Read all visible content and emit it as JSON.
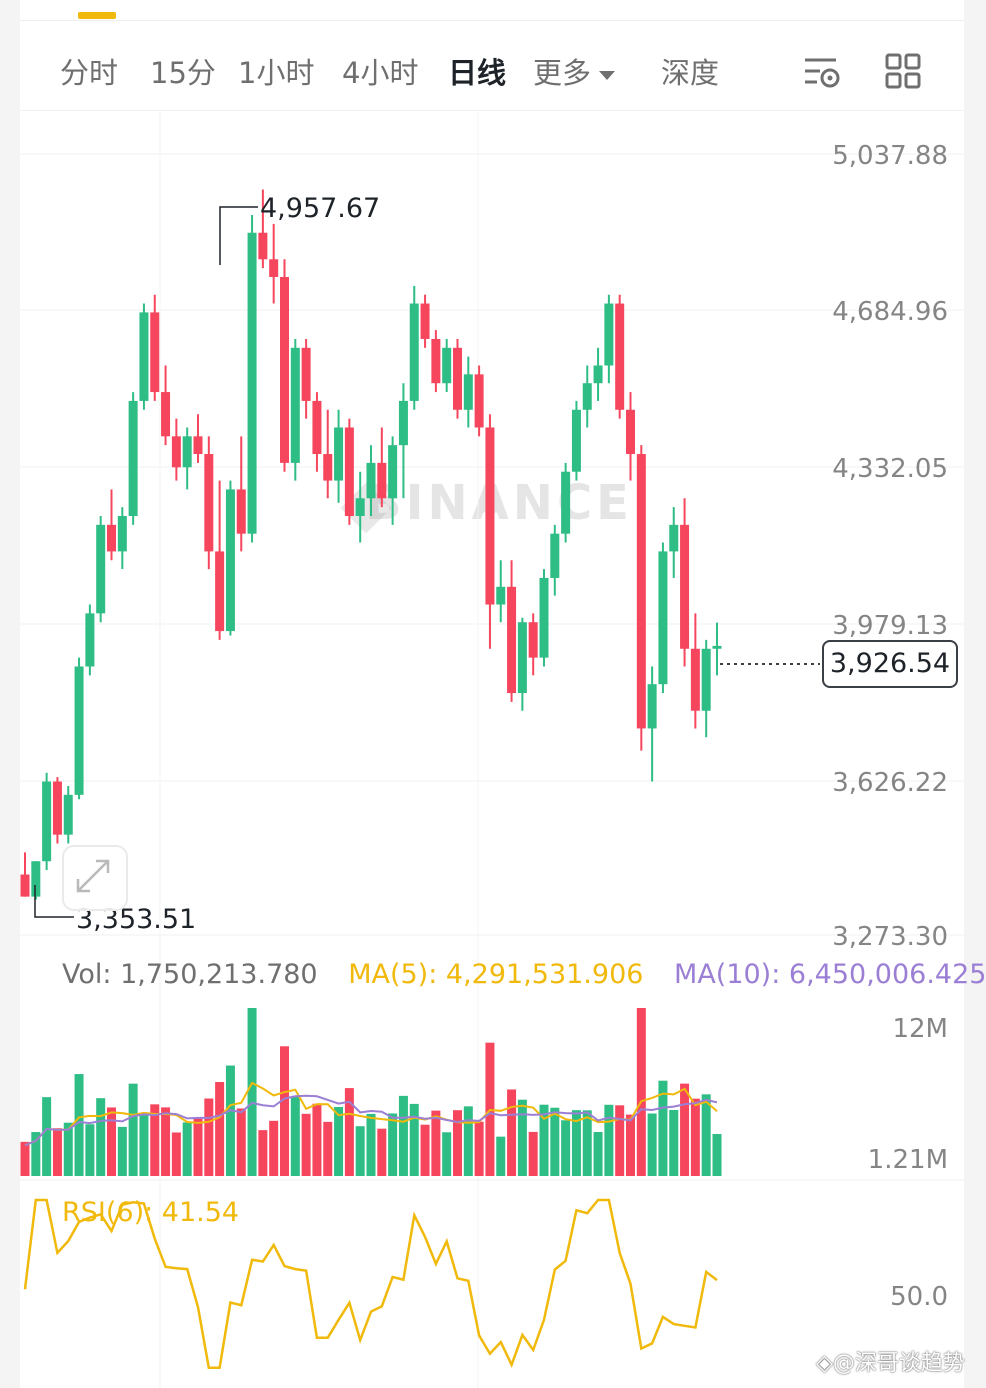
{
  "tabs": [
    {
      "label": "分时",
      "active": false
    },
    {
      "label": "15分",
      "active": false
    },
    {
      "label": "1小时",
      "active": false
    },
    {
      "label": "4小时",
      "active": false
    },
    {
      "label": "日线",
      "active": true
    },
    {
      "label": "更多",
      "active": false
    },
    {
      "label": "深度",
      "active": false
    }
  ],
  "toolbar_icons": [
    "indicator-settings-icon",
    "layout-grid-icon"
  ],
  "watermark_logo": "BINANCE",
  "price_axis": [
    "5,037.88",
    "4,684.96",
    "4,332.05",
    "3,979.13",
    "3,626.22",
    "3,273.30"
  ],
  "high_label": "4,957.67",
  "low_label": "3,353.51",
  "current_price": "3,926.54",
  "volume": {
    "vol_text": "Vol: 1,750,213.780",
    "ma5_text": "MA(5): 4,291,531.906",
    "ma10_text": "MA(10): 6,450,006.425",
    "axis_top": "12M",
    "axis_bottom": "1.21M"
  },
  "rsi": {
    "label": "RSI(6): 41.54",
    "axis": "50.0"
  },
  "credit": "◈@深哥谈趋势",
  "colors": {
    "up": "#2ebd85",
    "down": "#f6465d",
    "ma5": "#f0b90b",
    "ma10": "#9b7fd4",
    "rsi": "#f0b90b"
  },
  "chart_data": {
    "type": "candlestick",
    "price_range": [
      3273.3,
      5037.88
    ],
    "candles": [
      [
        3410,
        3460,
        3360,
        3360
      ],
      [
        3360,
        3440,
        3353.51,
        3440
      ],
      [
        3440,
        3640,
        3420,
        3620
      ],
      [
        3620,
        3630,
        3480,
        3500
      ],
      [
        3500,
        3610,
        3480,
        3590
      ],
      [
        3590,
        3900,
        3580,
        3880
      ],
      [
        3880,
        4020,
        3860,
        4000
      ],
      [
        4000,
        4220,
        3980,
        4200
      ],
      [
        4200,
        4280,
        4120,
        4140
      ],
      [
        4140,
        4240,
        4100,
        4220
      ],
      [
        4220,
        4500,
        4200,
        4480
      ],
      [
        4480,
        4700,
        4460,
        4680
      ],
      [
        4680,
        4720,
        4480,
        4500
      ],
      [
        4500,
        4560,
        4380,
        4400
      ],
      [
        4400,
        4440,
        4300,
        4330
      ],
      [
        4330,
        4420,
        4280,
        4400
      ],
      [
        4400,
        4450,
        4340,
        4360
      ],
      [
        4360,
        4400,
        4100,
        4140
      ],
      [
        4140,
        4300,
        3940,
        3960
      ],
      [
        3960,
        4300,
        3950,
        4280
      ],
      [
        4280,
        4400,
        4140,
        4180
      ],
      [
        4180,
        4900,
        4160,
        4860
      ],
      [
        4860,
        4957.67,
        4780,
        4800
      ],
      [
        4800,
        4880,
        4700,
        4760
      ],
      [
        4760,
        4800,
        4320,
        4340
      ],
      [
        4340,
        4620,
        4300,
        4600
      ],
      [
        4600,
        4620,
        4440,
        4480
      ],
      [
        4480,
        4500,
        4320,
        4360
      ],
      [
        4360,
        4460,
        4260,
        4300
      ],
      [
        4300,
        4460,
        4250,
        4420
      ],
      [
        4420,
        4440,
        4200,
        4220
      ],
      [
        4220,
        4320,
        4160,
        4260
      ],
      [
        4260,
        4380,
        4220,
        4340
      ],
      [
        4340,
        4420,
        4240,
        4260
      ],
      [
        4260,
        4400,
        4200,
        4380
      ],
      [
        4380,
        4520,
        4260,
        4480
      ],
      [
        4480,
        4740,
        4460,
        4700
      ],
      [
        4700,
        4720,
        4600,
        4620
      ],
      [
        4620,
        4640,
        4500,
        4520
      ],
      [
        4520,
        4620,
        4500,
        4600
      ],
      [
        4600,
        4620,
        4440,
        4460
      ],
      [
        4460,
        4580,
        4420,
        4540
      ],
      [
        4540,
        4560,
        4400,
        4420
      ],
      [
        4420,
        4450,
        3920,
        4020
      ],
      [
        4020,
        4120,
        3980,
        4060
      ],
      [
        4060,
        4120,
        3800,
        3820
      ],
      [
        3820,
        3990,
        3780,
        3980
      ],
      [
        3980,
        4000,
        3860,
        3900
      ],
      [
        3900,
        4100,
        3880,
        4080
      ],
      [
        4080,
        4200,
        4040,
        4180
      ],
      [
        4180,
        4340,
        4160,
        4320
      ],
      [
        4320,
        4480,
        4300,
        4460
      ],
      [
        4460,
        4560,
        4420,
        4520
      ],
      [
        4520,
        4600,
        4480,
        4560
      ],
      [
        4560,
        4720,
        4520,
        4700
      ],
      [
        4700,
        4720,
        4440,
        4460
      ],
      [
        4460,
        4500,
        4300,
        4360
      ],
      [
        4360,
        4380,
        3690,
        3740
      ],
      [
        3740,
        3880,
        3620,
        3840
      ],
      [
        3840,
        4160,
        3820,
        4140
      ],
      [
        4140,
        4240,
        4080,
        4200
      ],
      [
        4200,
        4260,
        3880,
        3920
      ],
      [
        3920,
        4000,
        3740,
        3780
      ],
      [
        3780,
        3940,
        3720,
        3920
      ],
      [
        3920,
        3979.13,
        3860,
        3926.54
      ]
    ],
    "volume_range": [
      1210000,
      12000000
    ],
    "rsi_range": [
      0,
      100
    ]
  }
}
